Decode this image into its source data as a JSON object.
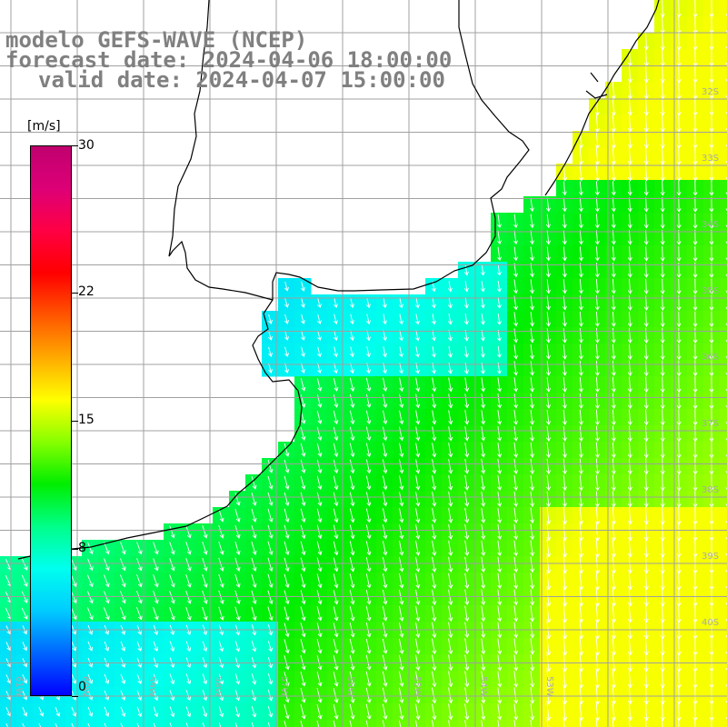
{
  "title": {
    "line1": "modelo GEFS-WAVE (NCEP)",
    "line2": "forecast date: 2024-04-06 18:00:00",
    "line3": "valid date: 2024-04-07 15:00:00"
  },
  "colorbar": {
    "units": "[m/s]",
    "min": 0,
    "max": 30,
    "ticks": [
      {
        "value": 30,
        "label": "30"
      },
      {
        "value": 22,
        "label": "22"
      },
      {
        "value": 15,
        "label": "15"
      },
      {
        "value": 8,
        "label": "8"
      },
      {
        "value": 0,
        "label": "0"
      }
    ],
    "colors": [
      "#0000ff",
      "#0066ff",
      "#00ccff",
      "#00ffee",
      "#00ff88",
      "#00ee00",
      "#88ff00",
      "#ffff00",
      "#ffaa00",
      "#ff5500",
      "#ff0000",
      "#ff0044",
      "#dd0077",
      "#c0006e"
    ]
  },
  "map": {
    "variable": "wind speed and direction",
    "lat_labels": [
      "32S",
      "33S",
      "34S",
      "35S",
      "36S",
      "37S",
      "38S",
      "39S",
      "40S"
    ],
    "lon_labels": [
      "61W",
      "60W",
      "59W",
      "58W",
      "57W",
      "56W",
      "55W",
      "54W",
      "53W"
    ],
    "land_color": "#ffffff",
    "grid_color": "#a0a0a0",
    "arrow_color": "#ffffff",
    "coast_color": "#000000"
  }
}
